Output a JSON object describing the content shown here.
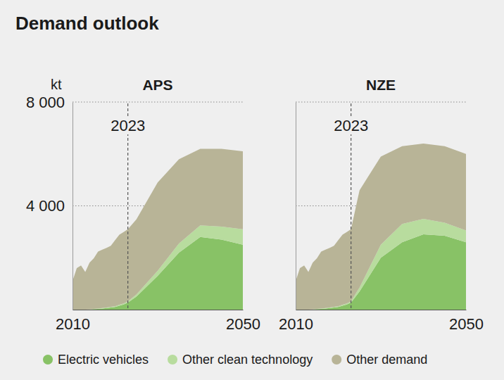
{
  "title": "Demand outlook",
  "chart_data": [
    {
      "type": "area",
      "title": "APS",
      "ylabel": "kt",
      "stacked": true,
      "grid": true,
      "legend": "bottom",
      "x": [
        2010,
        2011,
        2012,
        2013,
        2014,
        2015,
        2016,
        2017,
        2018,
        2019,
        2020,
        2021,
        2022,
        2023,
        2025,
        2030,
        2035,
        2040,
        2045,
        2050
      ],
      "xlim": [
        2010,
        2050
      ],
      "xticks": [
        2010,
        2050
      ],
      "ylim": [
        0,
        8000
      ],
      "yticks": [
        {
          "value": 4000,
          "label": "4 000"
        },
        {
          "value": 8000,
          "label": "8 000"
        }
      ],
      "annotations": [
        {
          "x": 2023,
          "label": "2023"
        }
      ],
      "series": [
        {
          "name": "Electric vehicles",
          "color": "#88c266",
          "values": [
            0,
            0,
            0,
            0,
            10,
            20,
            30,
            40,
            60,
            80,
            100,
            150,
            200,
            270,
            500,
            1300,
            2200,
            2800,
            2700,
            2500
          ]
        },
        {
          "name": "Other clean technology",
          "color": "#b8dc9e",
          "values": [
            0,
            0,
            0,
            0,
            0,
            10,
            10,
            20,
            20,
            30,
            30,
            40,
            40,
            50,
            80,
            200,
            350,
            450,
            500,
            600
          ]
        },
        {
          "name": "Other demand",
          "color": "#b8b497",
          "values": [
            1100,
            1600,
            1700,
            1450,
            1800,
            1950,
            2200,
            2250,
            2300,
            2350,
            2550,
            2700,
            2750,
            2780,
            2900,
            3400,
            3250,
            2950,
            3000,
            3000
          ]
        }
      ]
    },
    {
      "type": "area",
      "title": "NZE",
      "stacked": true,
      "grid": true,
      "legend": "bottom",
      "tick_labels": "x",
      "x": [
        2010,
        2011,
        2012,
        2013,
        2014,
        2015,
        2016,
        2017,
        2018,
        2019,
        2020,
        2021,
        2022,
        2023,
        2025,
        2030,
        2035,
        2040,
        2045,
        2050
      ],
      "xlim": [
        2010,
        2050
      ],
      "xticks": [
        2010,
        2050
      ],
      "ylim": [
        0,
        8000
      ],
      "yticks": [
        {
          "value": 4000,
          "label": "4 000"
        },
        {
          "value": 8000,
          "label": "8 000"
        }
      ],
      "annotations": [
        {
          "x": 2023,
          "label": "2023"
        }
      ],
      "series": [
        {
          "name": "Electric vehicles",
          "color": "#88c266",
          "values": [
            0,
            0,
            0,
            0,
            10,
            20,
            30,
            40,
            60,
            80,
            100,
            150,
            200,
            270,
            700,
            2000,
            2600,
            2900,
            2850,
            2600
          ]
        },
        {
          "name": "Other clean technology",
          "color": "#b8dc9e",
          "values": [
            0,
            0,
            0,
            0,
            0,
            10,
            10,
            20,
            20,
            30,
            30,
            40,
            40,
            50,
            150,
            500,
            700,
            600,
            500,
            450
          ]
        },
        {
          "name": "Other demand",
          "color": "#b8b497",
          "values": [
            1100,
            1600,
            1700,
            1450,
            1800,
            1950,
            2200,
            2250,
            2300,
            2350,
            2550,
            2700,
            2750,
            2780,
            3750,
            3400,
            3000,
            2900,
            2950,
            2950
          ]
        }
      ]
    }
  ]
}
